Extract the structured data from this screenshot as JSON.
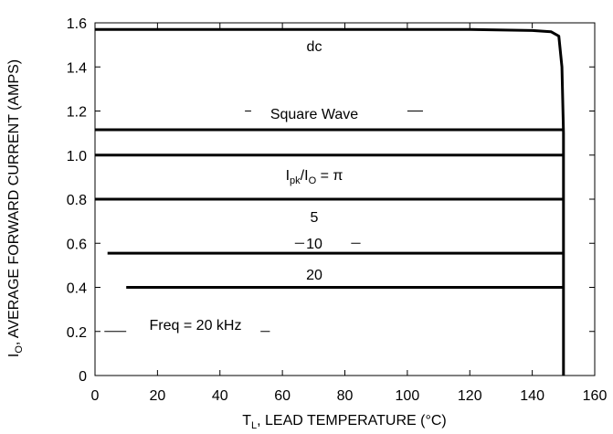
{
  "chart_data": {
    "type": "line",
    "xlim": [
      0,
      160
    ],
    "ylim": [
      0,
      1.6
    ],
    "x_ticks": [
      0,
      20,
      40,
      60,
      80,
      100,
      120,
      140,
      160
    ],
    "y_ticks": [
      0,
      0.2,
      0.4,
      0.6,
      0.8,
      1.0,
      1.2,
      1.4,
      1.6
    ],
    "x_tick_labels": [
      "0",
      "20",
      "40",
      "60",
      "80",
      "100",
      "120",
      "140",
      "160"
    ],
    "y_tick_labels": [
      "0",
      "0.2",
      "0.4",
      "0.6",
      "0.8",
      "1.0",
      "1.2",
      "1.4",
      "1.6"
    ],
    "xlabel": {
      "prefix": "T",
      "sub": "L",
      "rest": ", LEAD TEMPERATURE (°C)"
    },
    "ylabel": {
      "prefix": "I",
      "sub": "O",
      "rest": ", AVERAGE FORWARD CURRENT (AMPS)"
    },
    "grid": false,
    "series": [
      {
        "name": "dc",
        "points": [
          [
            0,
            1.57
          ],
          [
            120,
            1.57
          ],
          [
            140,
            1.565
          ],
          [
            146,
            1.56
          ],
          [
            148.5,
            1.54
          ],
          [
            149.5,
            1.4
          ],
          [
            150,
            1.1
          ],
          [
            150,
            0
          ]
        ]
      },
      {
        "name": "Square Wave",
        "points": [
          [
            0,
            1.115
          ],
          [
            150,
            1.115
          ]
        ]
      },
      {
        "name": "Ipk/IO = π",
        "points": [
          [
            0,
            1.0
          ],
          [
            150,
            1.0
          ]
        ]
      },
      {
        "name": "5",
        "points": [
          [
            0,
            0.8
          ],
          [
            150,
            0.8
          ]
        ]
      },
      {
        "name": "10",
        "points": [
          [
            4,
            0.555
          ],
          [
            150,
            0.555
          ]
        ]
      },
      {
        "name": "20",
        "points": [
          [
            10,
            0.4
          ],
          [
            150,
            0.4
          ]
        ]
      }
    ],
    "annotations": {
      "dc": "dc",
      "square_wave": "Square Wave",
      "ratio": {
        "i1": "I",
        "s1": "pk",
        "mid": "/I",
        "s2": "O",
        "rest": " = π"
      },
      "five": "5",
      "ten": "10",
      "twenty": "20",
      "freq": "Freq = 20 kHz"
    }
  }
}
